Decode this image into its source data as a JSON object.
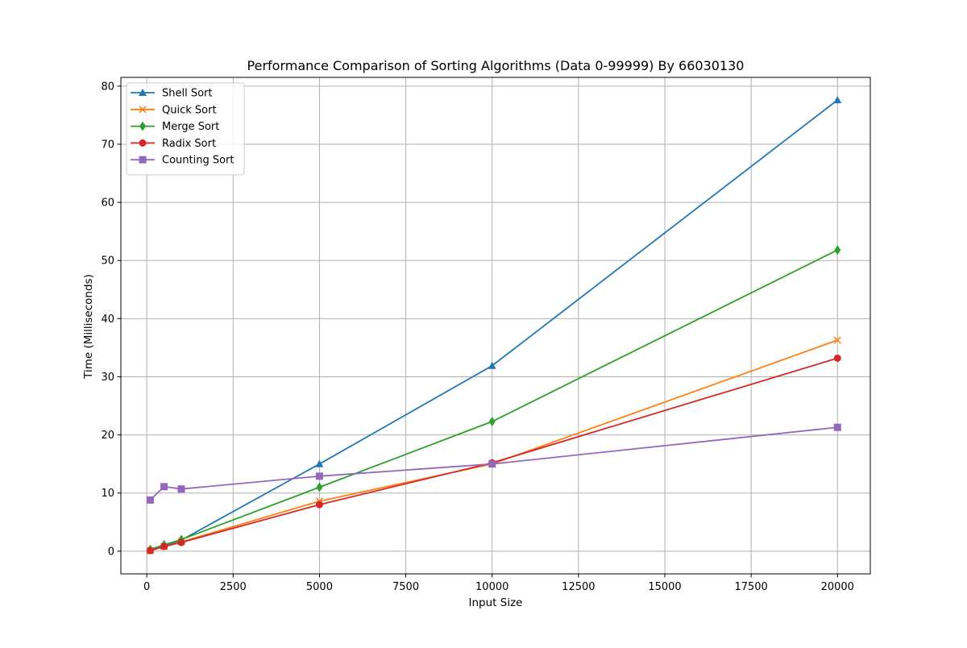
{
  "chart_data": {
    "type": "line",
    "title": "Performance Comparison of Sorting Algorithms (Data 0-99999) By 66030130",
    "xlabel": "Input Size",
    "ylabel": "Time (Milliseconds)",
    "xlim": [
      -750,
      20950
    ],
    "ylim": [
      -3.9,
      81.5
    ],
    "xticks": [
      0,
      2500,
      5000,
      7500,
      10000,
      12500,
      15000,
      17500,
      20000
    ],
    "yticks": [
      0,
      10,
      20,
      30,
      40,
      50,
      60,
      70,
      80
    ],
    "grid": true,
    "legend_position": "upper left",
    "x": [
      100,
      500,
      1000,
      5000,
      10000,
      20000
    ],
    "series": [
      {
        "name": "Shell Sort",
        "color": "#1f77b4",
        "marker": "triangle",
        "values": [
          0.1,
          0.9,
          1.9,
          15.0,
          31.9,
          77.6
        ]
      },
      {
        "name": "Quick Sort",
        "color": "#ff7f0e",
        "marker": "x",
        "values": [
          0.1,
          0.8,
          1.6,
          8.6,
          15.0,
          36.3
        ]
      },
      {
        "name": "Merge Sort",
        "color": "#2ca02c",
        "marker": "diamond",
        "values": [
          0.3,
          1.1,
          2.0,
          11.0,
          22.3,
          51.8
        ]
      },
      {
        "name": "Radix Sort",
        "color": "#d62728",
        "marker": "circle",
        "values": [
          0.1,
          0.8,
          1.5,
          8.0,
          15.2,
          33.2
        ]
      },
      {
        "name": "Counting Sort",
        "color": "#9467bd",
        "marker": "square",
        "values": [
          8.8,
          11.1,
          10.7,
          12.9,
          15.0,
          21.3
        ]
      }
    ]
  }
}
